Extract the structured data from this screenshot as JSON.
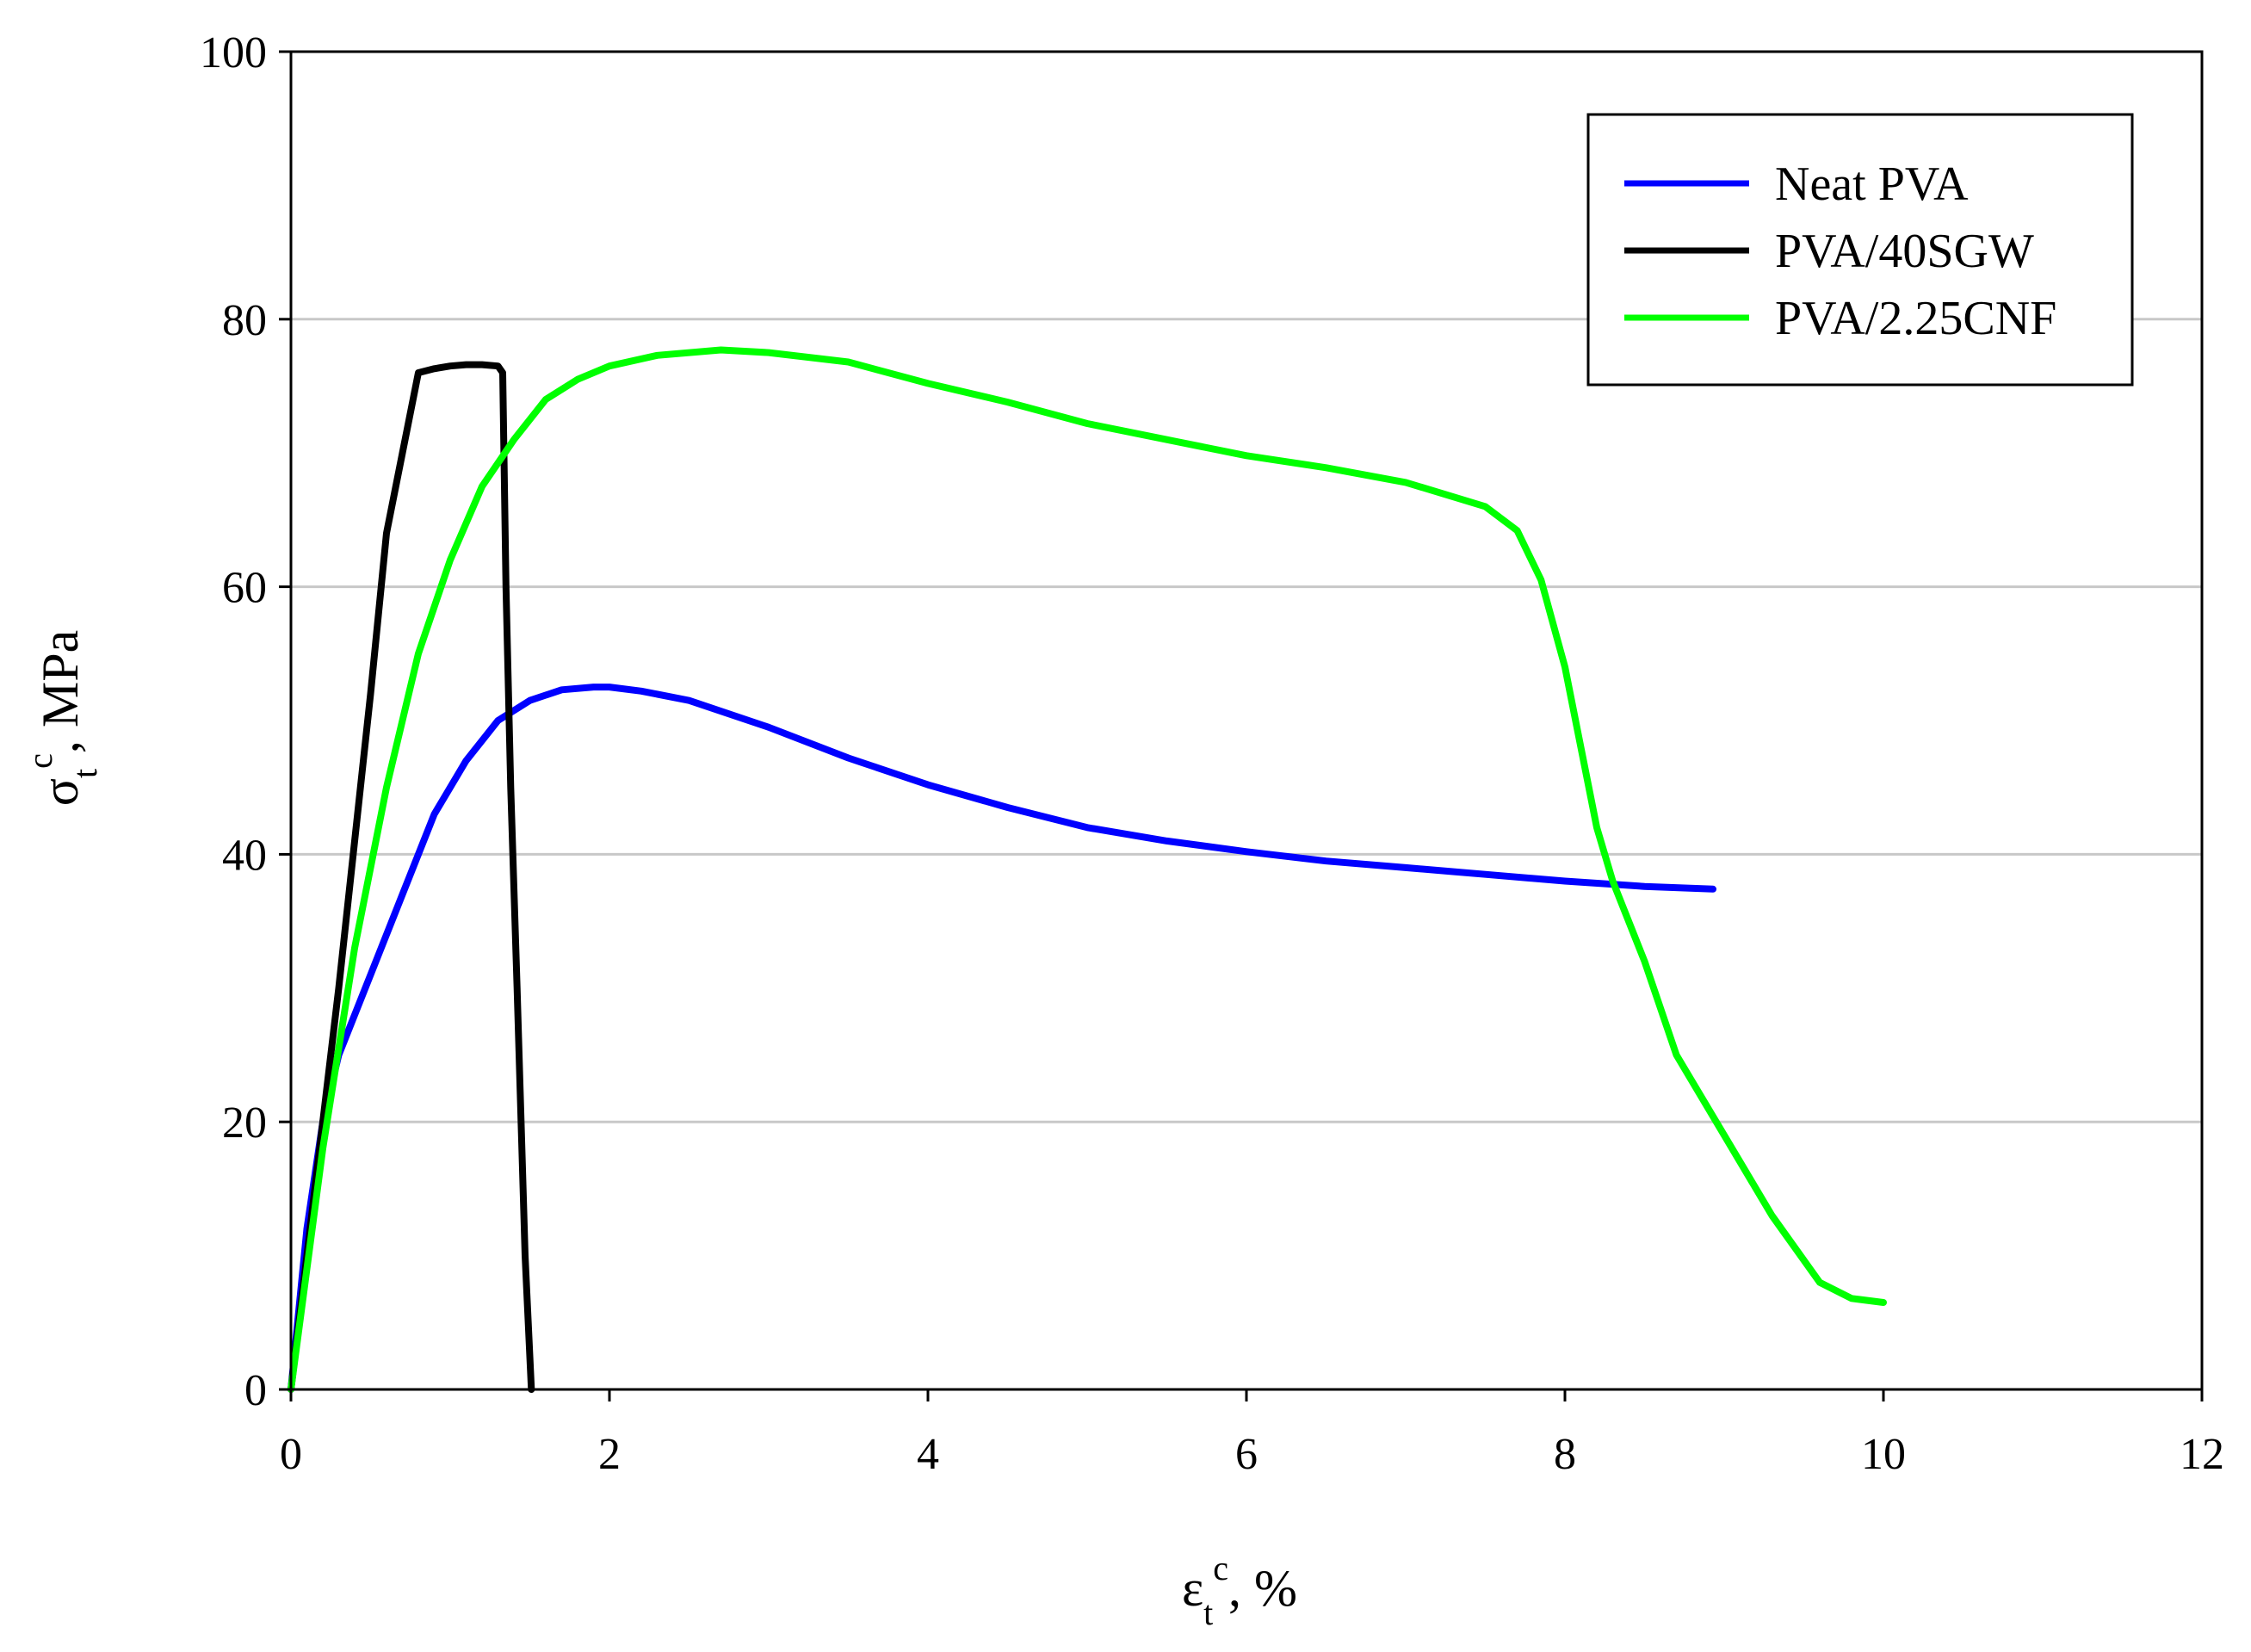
{
  "chart_data": {
    "type": "line",
    "title": "",
    "xlabel": {
      "base": "ε",
      "sub": "t",
      "sup": "c",
      "suffix": ", %"
    },
    "ylabel": {
      "base": "σ",
      "sub": "t",
      "sup": "c",
      "suffix": ", MPa"
    },
    "xlim": [
      0,
      12
    ],
    "ylim": [
      0,
      100
    ],
    "xticks": [
      "0",
      "2",
      "4",
      "6",
      "8",
      "10",
      "12"
    ],
    "yticks": [
      "0",
      "20",
      "40",
      "60",
      "80",
      "100"
    ],
    "grid": "horizontal",
    "legend_position": "top-right",
    "series": [
      {
        "name": "Neat PVA",
        "color": "#0000ff",
        "x": [
          0,
          0.1,
          0.2,
          0.3,
          0.5,
          0.7,
          0.9,
          1.1,
          1.3,
          1.5,
          1.7,
          1.9,
          2.0,
          2.2,
          2.5,
          3.0,
          3.5,
          4.0,
          4.5,
          5.0,
          5.5,
          6.0,
          6.5,
          7.0,
          7.5,
          8.0,
          8.5,
          8.93
        ],
        "y": [
          0,
          12,
          20,
          25,
          31,
          37,
          43,
          47,
          50,
          51.5,
          52.3,
          52.5,
          52.5,
          52.2,
          51.5,
          49.5,
          47.2,
          45.2,
          43.5,
          42.0,
          41.0,
          40.2,
          39.5,
          39.0,
          38.5,
          38.0,
          37.6,
          37.4
        ]
      },
      {
        "name": "PVA/40SGW",
        "color": "#000000",
        "x": [
          0,
          0.1,
          0.2,
          0.3,
          0.4,
          0.5,
          0.6,
          0.7,
          0.8,
          0.9,
          1.0,
          1.1,
          1.2,
          1.3,
          1.33,
          1.35,
          1.38,
          1.42,
          1.47,
          1.51
        ],
        "y": [
          0,
          10,
          20,
          30,
          41,
          52,
          64,
          70,
          76,
          76.3,
          76.5,
          76.6,
          76.6,
          76.5,
          76.0,
          60,
          45,
          30,
          10,
          0
        ]
      },
      {
        "name": "PVA/2.25CNF",
        "color": "#00ff00",
        "x": [
          0,
          0.2,
          0.4,
          0.6,
          0.8,
          1.0,
          1.2,
          1.4,
          1.6,
          1.8,
          2.0,
          2.3,
          2.7,
          3.0,
          3.5,
          4.0,
          4.5,
          5.0,
          5.5,
          6.0,
          6.5,
          7.0,
          7.5,
          7.7,
          7.85,
          8.0,
          8.1,
          8.2,
          8.3,
          8.5,
          8.7,
          9.0,
          9.3,
          9.6,
          9.8,
          10.0
        ],
        "y": [
          0,
          18,
          33,
          45,
          55,
          62,
          67.5,
          71,
          74,
          75.5,
          76.5,
          77.3,
          77.7,
          77.5,
          76.8,
          75.2,
          73.8,
          72.2,
          71.0,
          69.8,
          68.9,
          67.8,
          66.0,
          64.2,
          60.5,
          54,
          48,
          42,
          38,
          32,
          25,
          19,
          13,
          8,
          6.8,
          6.5
        ]
      }
    ]
  }
}
